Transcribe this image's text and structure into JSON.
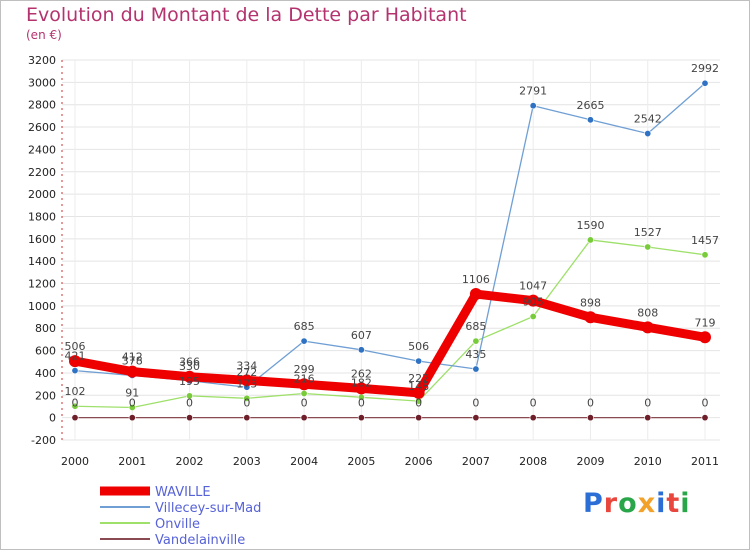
{
  "chart_data": {
    "type": "line",
    "title": "Evolution du Montant de la Dette par Habitant",
    "subtitle": "(en €)",
    "xlabel": "",
    "ylabel": "",
    "x": [
      "2000",
      "2001",
      "2002",
      "2003",
      "2004",
      "2005",
      "2006",
      "2007",
      "2008",
      "2009",
      "2010",
      "2011"
    ],
    "ylim": [
      -200,
      3200
    ],
    "yticks": [
      -200,
      0,
      200,
      400,
      600,
      800,
      1000,
      1200,
      1400,
      1600,
      1800,
      2000,
      2200,
      2400,
      2600,
      2800,
      3000,
      3200
    ],
    "grid": true,
    "legend": "bottom-left",
    "series": [
      {
        "name": "WAVILLE",
        "color": "#ee0000",
        "values": [
          506,
          412,
          366,
          334,
          299,
          262,
          222,
          1106,
          1047,
          898,
          808,
          719
        ]
      },
      {
        "name": "Villecey-sur-Mad",
        "color": "#6f9fd4",
        "values": [
          421,
          378,
          330,
          272,
          685,
          607,
          506,
          435,
          2791,
          2665,
          2542,
          2992
        ]
      },
      {
        "name": "Onville",
        "color": "#9ee06a",
        "values": [
          102,
          91,
          195,
          173,
          216,
          182,
          148,
          685,
          905,
          1590,
          1527,
          1457
        ]
      },
      {
        "name": "Vandelainville",
        "color": "#8a4a52",
        "values": [
          0,
          0,
          0,
          0,
          0,
          0,
          0,
          0,
          0,
          0,
          0,
          0
        ]
      }
    ]
  }
}
